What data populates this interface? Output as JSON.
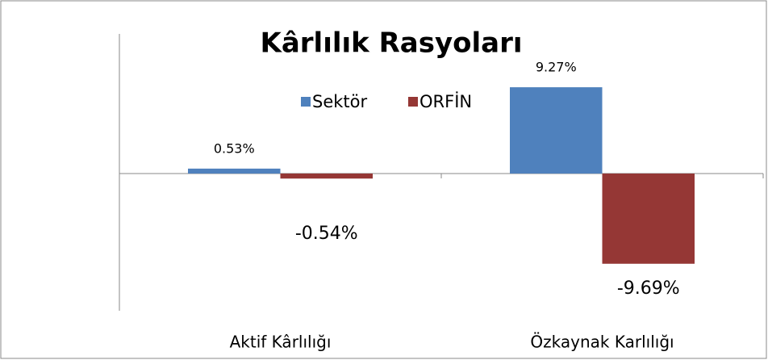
{
  "chart_data": {
    "type": "bar",
    "title": "Kârlılık Rasyoları",
    "categories": [
      "Aktif Kârlılığı",
      "Özkaynak Karlılığı"
    ],
    "series": [
      {
        "name": "Sektör",
        "color": "#4f81bd",
        "values": [
          0.53,
          9.27
        ],
        "value_labels": [
          "0.53%",
          "9.27%"
        ]
      },
      {
        "name": "ORFİN",
        "color": "#953735",
        "values": [
          -0.54,
          -9.69
        ],
        "value_labels": [
          "-0.54%",
          "-9.69%"
        ]
      }
    ],
    "ylim": [
      -15,
      15
    ]
  }
}
